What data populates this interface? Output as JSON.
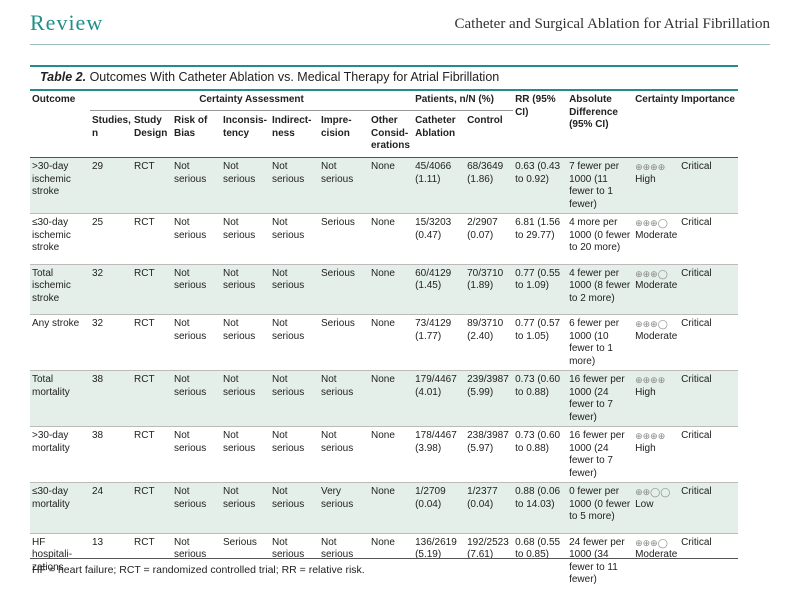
{
  "header": {
    "section": "Review",
    "running_title": "Catheter and Surgical Ablation for Atrial Fibrillation"
  },
  "table": {
    "label": "Table 2.",
    "title": "Outcomes With Catheter Ablation vs. Medical Therapy for Atrial Fibrillation",
    "group_headers": {
      "outcome": "Outcome",
      "certainty_assessment": "Certainty Assessment",
      "patients": "Patients, n/N (%)",
      "rr": "RR (95% CI)",
      "absolute": "Absolute Difference (95% CI)",
      "certainty": "Certainty",
      "importance": "Importance"
    },
    "sub_headers": {
      "studies": "Studies, n",
      "design": "Study Design",
      "bias": "Risk of Bias",
      "inconsistency": "Inconsis-tency",
      "indirectness": "Indirect-ness",
      "imprecision": "Impre-cision",
      "other": "Other Consid-erations",
      "catheter": "Catheter Ablation",
      "control": "Control"
    },
    "rows": [
      {
        "outcome": ">30-day ischemic stroke",
        "studies": "29",
        "design": "RCT",
        "bias": "Not serious",
        "inconsistency": "Not serious",
        "indirectness": "Not serious",
        "imprecision": "Not serious",
        "other": "None",
        "catheter": "45/4066 (1.11)",
        "control": "68/3649 (1.86)",
        "rr": "0.63 (0.43 to 0.92)",
        "absolute": "7 fewer per 1000 (11 fewer to 1 fewer)",
        "certainty_symbols": "⊕⊕⊕⊕",
        "certainty": "High",
        "importance": "Critical"
      },
      {
        "outcome": "≤30-day ischemic stroke",
        "studies": "25",
        "design": "RCT",
        "bias": "Not serious",
        "inconsistency": "Not serious",
        "indirectness": "Not serious",
        "imprecision": "Serious",
        "other": "None",
        "catheter": "15/3203 (0.47)",
        "control": "2/2907 (0.07)",
        "rr": "6.81 (1.56 to 29.77)",
        "absolute": "4 more per 1000 (0 fewer to 20 more)",
        "certainty_symbols": "⊕⊕⊕◯",
        "certainty": "Moderate",
        "importance": "Critical"
      },
      {
        "outcome": "Total ischemic stroke",
        "studies": "32",
        "design": "RCT",
        "bias": "Not serious",
        "inconsistency": "Not serious",
        "indirectness": "Not serious",
        "imprecision": "Serious",
        "other": "None",
        "catheter": "60/4129 (1.45)",
        "control": "70/3710 (1.89)",
        "rr": "0.77 (0.55 to 1.09)",
        "absolute": "4 fewer per 1000 (8 fewer to 2 more)",
        "certainty_symbols": "⊕⊕⊕◯",
        "certainty": "Moderate",
        "importance": "Critical"
      },
      {
        "outcome": "Any stroke",
        "studies": "32",
        "design": "RCT",
        "bias": "Not serious",
        "inconsistency": "Not serious",
        "indirectness": "Not serious",
        "imprecision": "Serious",
        "other": "None",
        "catheter": "73/4129 (1.77)",
        "control": "89/3710 (2.40)",
        "rr": "0.77 (0.57 to 1.05)",
        "absolute": "6 fewer per 1000 (10 fewer to 1 more)",
        "certainty_symbols": "⊕⊕⊕◯",
        "certainty": "Moderate",
        "importance": "Critical"
      },
      {
        "outcome": "Total mortality",
        "studies": "38",
        "design": "RCT",
        "bias": "Not serious",
        "inconsistency": "Not serious",
        "indirectness": "Not serious",
        "imprecision": "Not serious",
        "other": "None",
        "catheter": "179/4467 (4.01)",
        "control": "239/3987 (5.99)",
        "rr": "0.73 (0.60 to 0.88)",
        "absolute": "16 fewer per 1000 (24 fewer to 7 fewer)",
        "certainty_symbols": "⊕⊕⊕⊕",
        "certainty": "High",
        "importance": "Critical"
      },
      {
        "outcome": ">30-day mortality",
        "studies": "38",
        "design": "RCT",
        "bias": "Not serious",
        "inconsistency": "Not serious",
        "indirectness": "Not serious",
        "imprecision": "Not serious",
        "other": "None",
        "catheter": "178/4467 (3.98)",
        "control": "238/3987 (5.97)",
        "rr": "0.73 (0.60 to 0.88)",
        "absolute": "16 fewer per 1000 (24 fewer to 7 fewer)",
        "certainty_symbols": "⊕⊕⊕⊕",
        "certainty": "High",
        "importance": "Critical"
      },
      {
        "outcome": "≤30-day mortality",
        "studies": "24",
        "design": "RCT",
        "bias": "Not serious",
        "inconsistency": "Not serious",
        "indirectness": "Not serious",
        "imprecision": "Very serious",
        "other": "None",
        "catheter": "1/2709 (0.04)",
        "control": "1/2377 (0.04)",
        "rr": "0.88 (0.06 to 14.03)",
        "absolute": "0 fewer per 1000 (0 fewer to 5 more)",
        "certainty_symbols": "⊕⊕◯◯",
        "certainty": "Low",
        "importance": "Critical"
      },
      {
        "outcome": "HF hospitali-zations",
        "studies": "13",
        "design": "RCT",
        "bias": "Not serious",
        "inconsistency": "Serious",
        "indirectness": "Not serious",
        "imprecision": "Not serious",
        "other": "None",
        "catheter": "136/2619 (5.19)",
        "control": "192/2523 (7.61)",
        "rr": "0.68 (0.55 to 0.85)",
        "absolute": "24 fewer per 1000 (34 fewer to 11 fewer)",
        "certainty_symbols": "⊕⊕⊕◯",
        "certainty": "Moderate",
        "importance": "Critical"
      }
    ]
  },
  "footnote": "HF = heart failure; RCT = randomized controlled trial; RR = relative risk.",
  "colors": {
    "accent": "#1f8f8a",
    "row_shade": "#e4efe9"
  }
}
